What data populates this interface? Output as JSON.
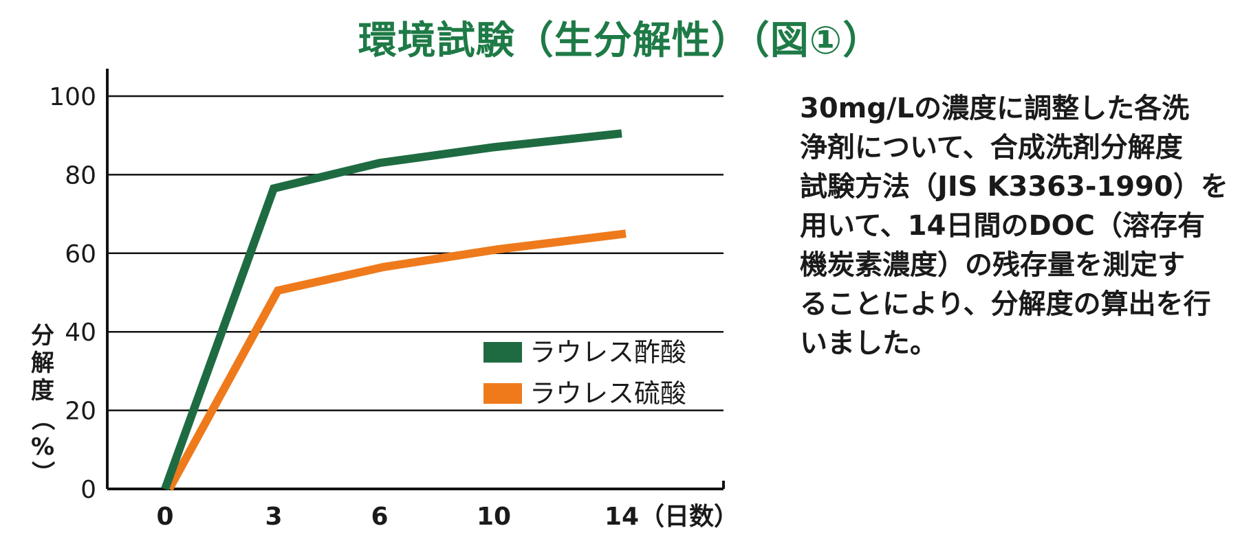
{
  "title": "環境試験（生分解性）（図①）",
  "description_lines": [
    "30mg/Lの濃度に調整した各洗",
    "浄剤について、合成洗剤分解度",
    "試験方法（JIS K3363-1990）を",
    "用いて、14日間のDOC（溶存有",
    "機炭素濃度）の残存量を測定す",
    "ることにより、分解度の算出を行",
    "いました。"
  ],
  "chart_data": {
    "type": "line",
    "categories": [
      "0",
      "3",
      "6",
      "10",
      "14"
    ],
    "x_unit_label": "（日数）",
    "ylabel_chars": [
      "分",
      "解",
      "度",
      "（",
      "%",
      "）"
    ],
    "ylabel": "分解度（%）",
    "yticks": [
      "0",
      "20",
      "40",
      "60",
      "80",
      "100"
    ],
    "ylim": [
      0,
      100
    ],
    "grid": true,
    "legend_position": "lower-right inside plot",
    "series": [
      {
        "name": "ラウレス酢酸",
        "color": "#1e6b42",
        "values": [
          0,
          76.5,
          83,
          87,
          90.5
        ]
      },
      {
        "name": "ラウレス硫酸",
        "color": "#ee7a1c",
        "values": [
          0,
          50.5,
          56.5,
          61,
          65
        ]
      }
    ]
  }
}
